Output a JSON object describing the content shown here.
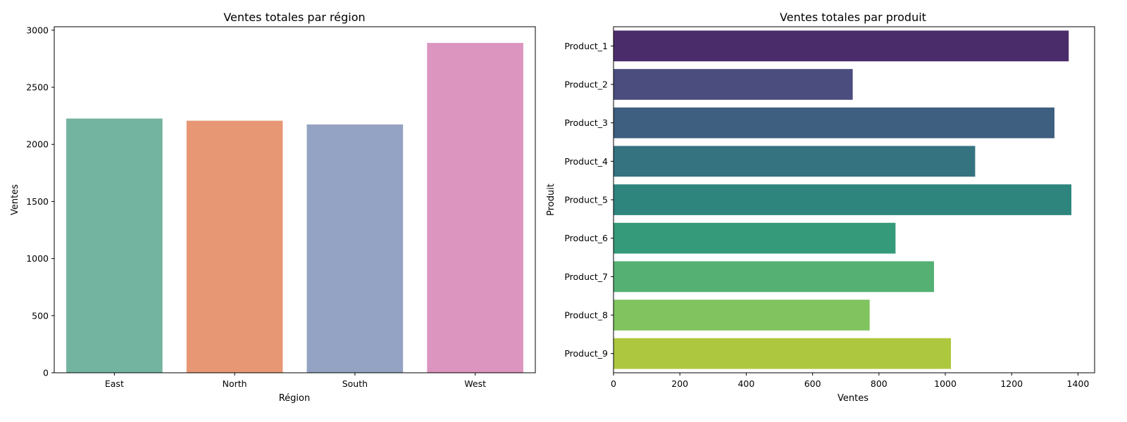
{
  "chart_data": [
    {
      "type": "bar",
      "title": "Ventes totales par région",
      "xlabel": "Région",
      "ylabel": "Ventes",
      "categories": [
        "East",
        "North",
        "South",
        "West"
      ],
      "values": [
        2226,
        2207,
        2174,
        2888
      ],
      "colors": [
        "#73b4a0",
        "#e89775",
        "#94a3c3",
        "#db95bf"
      ],
      "ylim": [
        0,
        3030
      ],
      "yticks": [
        0,
        500,
        1000,
        1500,
        2000,
        2500,
        3000
      ],
      "grid": false
    },
    {
      "type": "bar",
      "orientation": "horizontal",
      "title": "Ventes totales par produit",
      "xlabel": "Ventes",
      "ylabel": "Produit",
      "categories": [
        "Product_1",
        "Product_2",
        "Product_3",
        "Product_4",
        "Product_5",
        "Product_6",
        "Product_7",
        "Product_8",
        "Product_9"
      ],
      "values": [
        1372,
        721,
        1329,
        1090,
        1380,
        850,
        966,
        772,
        1017
      ],
      "colors": [
        "#4b2c6b",
        "#4b4d7f",
        "#3e5f80",
        "#357380",
        "#2e857e",
        "#359a7a",
        "#54b073",
        "#80c35f",
        "#adc73e"
      ],
      "xlim": [
        0,
        1450
      ],
      "xticks": [
        0,
        200,
        400,
        600,
        800,
        1000,
        1200,
        1400
      ],
      "grid": false
    }
  ]
}
